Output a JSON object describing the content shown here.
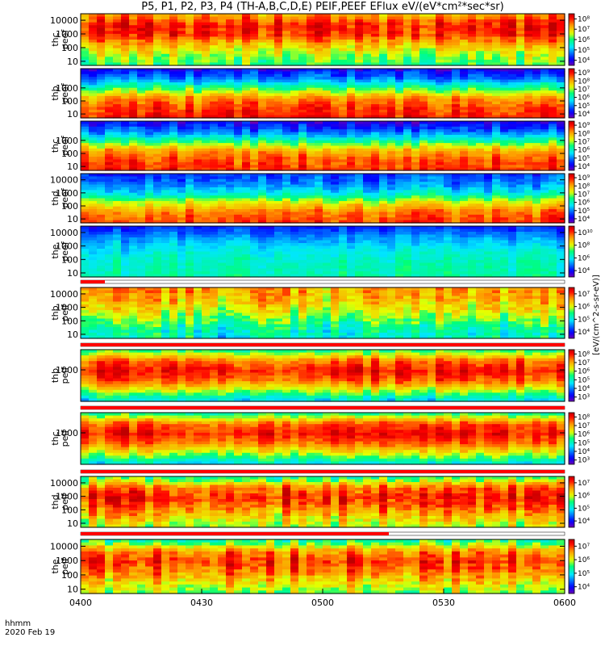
{
  "title": "P5, P1, P2, P3, P4 (TH-A,B,C,D,E) PEIF,PEEF EFlux eV/(eV*cm²*sec*sr)",
  "footer": {
    "time_label": "hhmm",
    "date_label": "2020 Feb 19"
  },
  "chart_data": {
    "type": "heatmap",
    "title": "P5, P1, P2, P3, P4 (TH-A,B,C,D,E) PEIF,PEEF EFlux eV/(eV*cm²*sec*sr)",
    "x_range": [
      "0400",
      "0600"
    ],
    "x_ticks": [
      "0400",
      "0430",
      "0500",
      "0530",
      "0600"
    ],
    "colorbar_label": "[eV/(cm^2-s-sr-eV)]",
    "colormap": "rainbow",
    "panels": [
      {
        "probe": "thc",
        "product": "peef",
        "yticks": [
          "10",
          "100",
          "1000",
          "10000"
        ],
        "cbar_ticks": [
          "10⁴",
          "10⁵",
          "10⁶",
          "10⁷",
          "10⁸"
        ],
        "cmin": 3.5,
        "cmax": 8.3,
        "peak": 0.25,
        "profile": [
          6.0,
          6.4,
          7.0,
          7.8,
          7.9,
          7.2
        ]
      },
      {
        "probe": "thb",
        "product": "peef",
        "yticks": [
          "10",
          "100",
          "1000"
        ],
        "cbar_ticks": [
          "10⁴",
          "10⁵",
          "10⁶",
          "10⁷",
          "10⁸",
          "10⁹"
        ],
        "cmin": 3.5,
        "cmax": 9.4,
        "peak": 0.25,
        "profile": [
          8.8,
          8.6,
          8.0,
          6.5,
          5.0,
          4.2
        ]
      },
      {
        "probe": "thc",
        "product": "peef",
        "yticks": [
          "10",
          "100",
          "1000"
        ],
        "cbar_ticks": [
          "10⁴",
          "10⁵",
          "10⁶",
          "10⁷",
          "10⁸",
          "10⁹"
        ],
        "cmin": 3.5,
        "cmax": 9.4,
        "peak": 0.25,
        "profile": [
          8.7,
          8.5,
          7.9,
          6.3,
          4.9,
          4.1
        ]
      },
      {
        "probe": "thd",
        "product": "peef",
        "yticks": [
          "10",
          "100",
          "1000",
          "10000"
        ],
        "cbar_ticks": [
          "10⁴",
          "10⁵",
          "10⁶",
          "10⁷",
          "10⁸",
          "10⁹"
        ],
        "cmin": 3.5,
        "cmax": 9.4,
        "peak": 0.2,
        "profile": [
          8.6,
          8.3,
          7.3,
          5.8,
          5.0,
          4.6
        ]
      },
      {
        "probe": "the",
        "product": "peef",
        "yticks": [
          "10",
          "100",
          "1000",
          "10000"
        ],
        "cbar_ticks": [
          "10⁴",
          "10⁶",
          "10⁸",
          "10¹⁰"
        ],
        "cmin": 3.3,
        "cmax": 10.6,
        "peak": 0.3,
        "profile": [
          6.5,
          6.4,
          6.2,
          5.8,
          5.2,
          4.4
        ]
      },
      {
        "probe": "thb",
        "product": "peif",
        "yticks": [
          "10",
          "100",
          "1000",
          "10000"
        ],
        "cbar_ticks": [
          "10⁴",
          "10⁵",
          "10⁶",
          "10⁷"
        ],
        "cmin": 3.3,
        "cmax": 7.3,
        "peak": 0.7,
        "profile": [
          4.9,
          5.1,
          5.5,
          5.9,
          6.2,
          6.3
        ]
      },
      {
        "probe": "thb",
        "product": "peif",
        "yticks": [
          "1000"
        ],
        "cbar_ticks": [
          "10³",
          "10⁴",
          "10⁵",
          "10⁶",
          "10⁷",
          "10⁸"
        ],
        "cmin": 2.3,
        "cmax": 8.3,
        "peak": 0.5,
        "profile": [
          4.5,
          6.0,
          7.3,
          7.8,
          7.2,
          5.4
        ]
      },
      {
        "probe": "thc",
        "product": "peif",
        "yticks": [
          "1000"
        ],
        "cbar_ticks": [
          "10³",
          "10⁴",
          "10⁵",
          "10⁶",
          "10⁷",
          "10⁸"
        ],
        "cmin": 2.3,
        "cmax": 8.3,
        "peak": 0.5,
        "profile": [
          4.6,
          6.0,
          7.2,
          7.8,
          7.3,
          5.3
        ]
      },
      {
        "probe": "thd",
        "product": "peif",
        "yticks": [
          "10",
          "100",
          "1000",
          "10000"
        ],
        "cbar_ticks": [
          "10⁴",
          "10⁵",
          "10⁶",
          "10⁷"
        ],
        "cmin": 3.3,
        "cmax": 7.3,
        "peak": 0.6,
        "profile": [
          5.7,
          6.1,
          6.6,
          6.9,
          6.5,
          5.3
        ]
      },
      {
        "probe": "the",
        "product": "peif",
        "yticks": [
          "10",
          "100",
          "1000",
          "10000"
        ],
        "cbar_ticks": [
          "10⁴",
          "10⁵",
          "10⁶",
          "10⁷"
        ],
        "cmin": 3.3,
        "cmax": 7.3,
        "peak": 0.6,
        "profile": [
          5.7,
          6.1,
          6.6,
          6.9,
          6.5,
          5.3
        ]
      }
    ]
  }
}
